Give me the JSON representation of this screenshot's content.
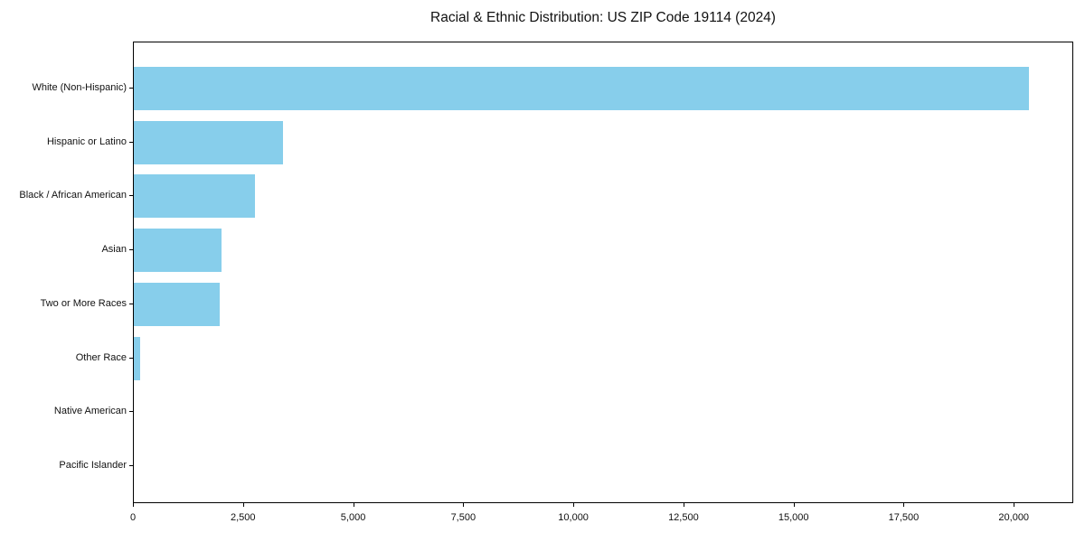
{
  "figure": {
    "background": "#ffffff",
    "text_color": "#111111",
    "spine_color": "#000000"
  },
  "chart_data": {
    "type": "bar",
    "orientation": "horizontal",
    "title": "Racial & Ethnic Distribution: US ZIP Code 19114 (2024)",
    "categories": [
      "White (Non-Hispanic)",
      "Hispanic or Latino",
      "Black / African American",
      "Asian",
      "Two or More Races",
      "Other Race",
      "Native American",
      "Pacific Islander"
    ],
    "values": [
      20330,
      3390,
      2750,
      1990,
      1950,
      140,
      0,
      0
    ],
    "xlabel": "",
    "ylabel": "",
    "xlim": [
      0,
      21350
    ],
    "xticks": [
      0,
      2500,
      5000,
      7500,
      10000,
      12500,
      15000,
      17500,
      20000
    ],
    "xtick_labels": [
      "0",
      "2,500",
      "5,000",
      "7,500",
      "10,000",
      "12,500",
      "15,000",
      "17,500",
      "20,000"
    ],
    "bar_color": "#87CEEB",
    "grid": false,
    "legend": null
  }
}
